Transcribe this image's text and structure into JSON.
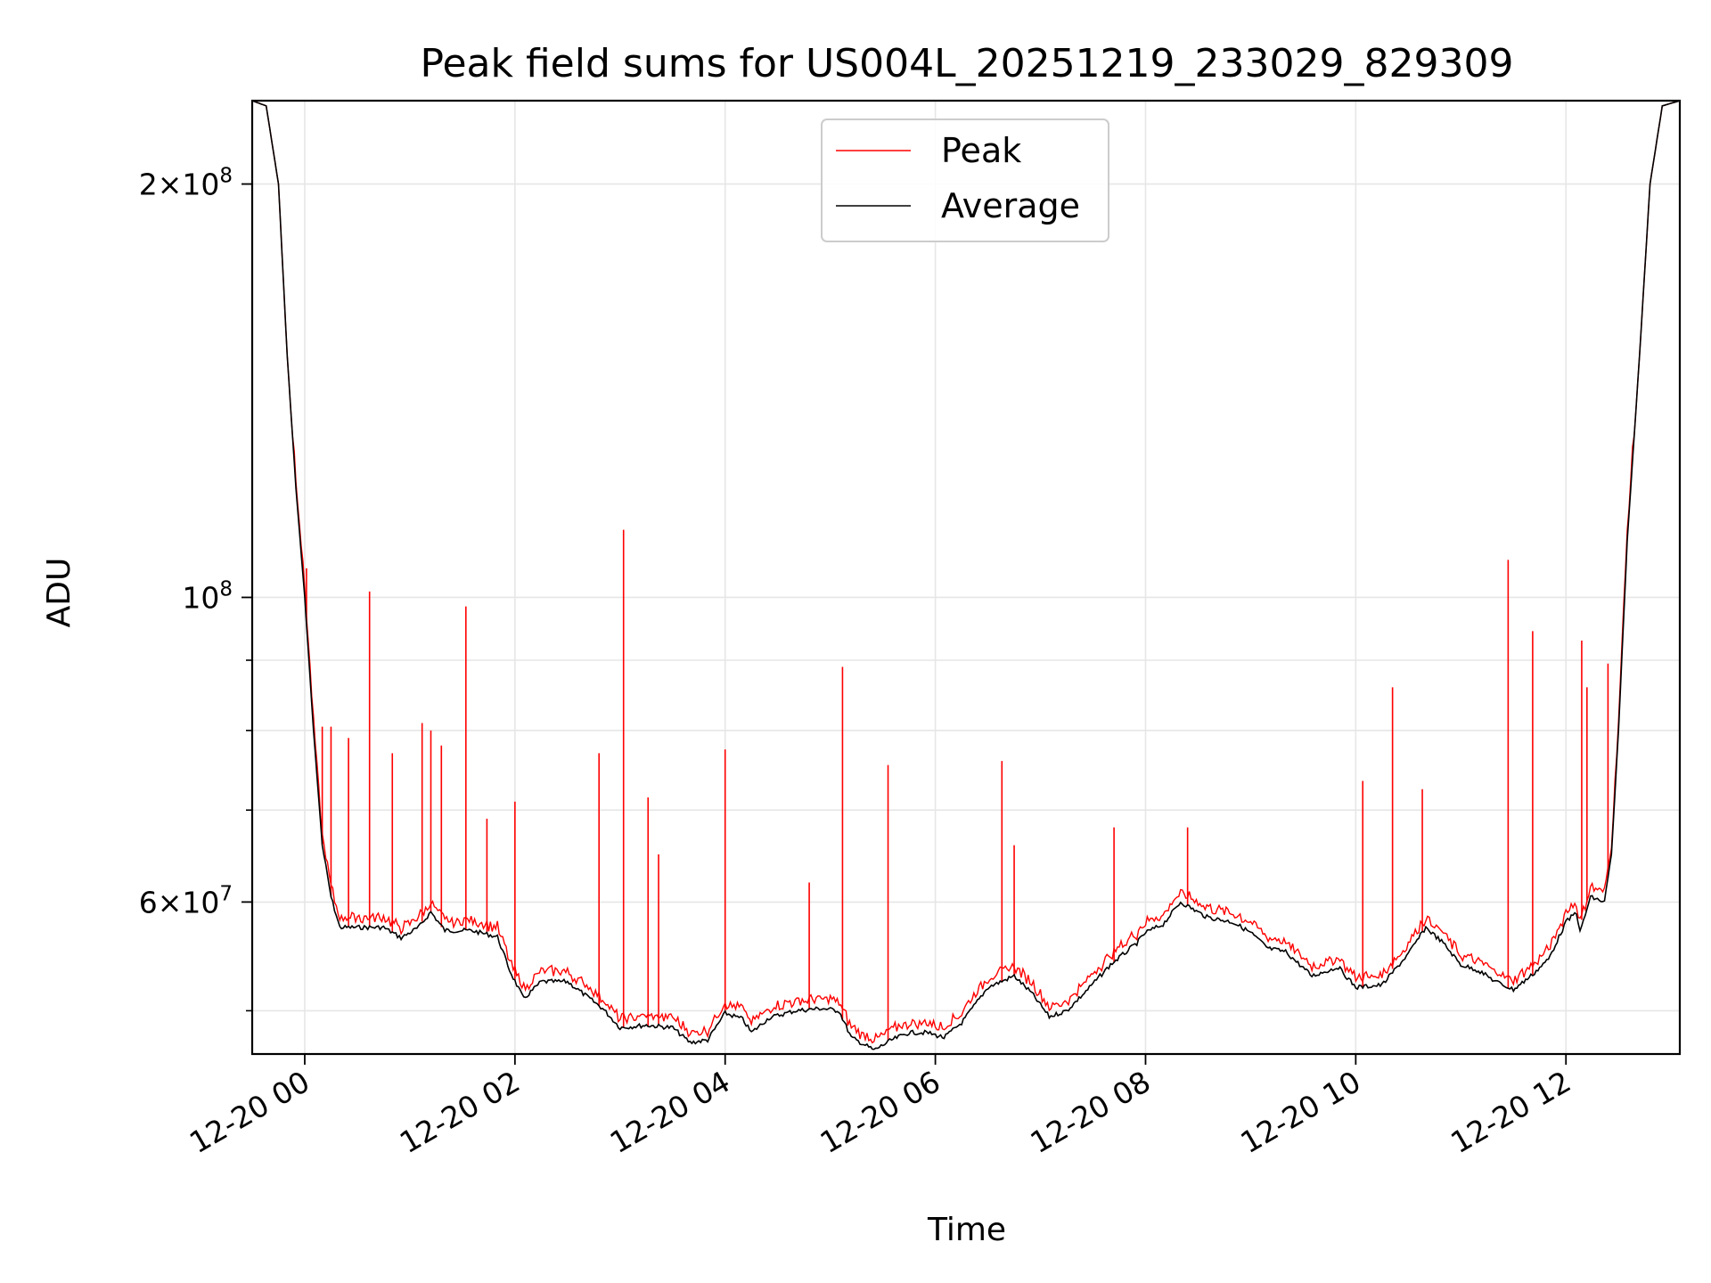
{
  "chart_data": {
    "type": "line",
    "title": "Peak field sums for US004L_20251219_233029_829309",
    "xlabel": "Time",
    "ylabel": "ADU",
    "yscale": "log",
    "xlim": [
      "2025-12-19 23:30",
      "2025-12-20 13:05"
    ],
    "ylim": [
      46500000,
      230000000
    ],
    "grid": true,
    "legend_position": "upper center",
    "x_ticks": [
      "12-20 00",
      "12-20 02",
      "12-20 04",
      "12-20 06",
      "12-20 08",
      "12-20 10",
      "12-20 12"
    ],
    "y_ticks": [
      {
        "value": 200000000,
        "mantissa": "2",
        "exponent": "8"
      },
      {
        "value": 100000000,
        "mantissa": "",
        "exponent": "8"
      },
      {
        "value": 60000000,
        "mantissa": "6",
        "exponent": "7"
      }
    ],
    "colors": {
      "peak": "#ff0000",
      "average": "#000000"
    },
    "series": [
      {
        "name": "Average",
        "color": "#000000",
        "points": [
          [
            "2025-12-19 23:30",
            230000000
          ],
          [
            "2025-12-19 23:38",
            228000000
          ],
          [
            "2025-12-19 23:45",
            200000000
          ],
          [
            "2025-12-19 23:50",
            150000000
          ],
          [
            "2025-12-19 23:55",
            120000000
          ],
          [
            "2025-12-20 00:00",
            100000000
          ],
          [
            "2025-12-20 00:05",
            80000000
          ],
          [
            "2025-12-20 00:10",
            66000000
          ],
          [
            "2025-12-20 00:15",
            60500000
          ],
          [
            "2025-12-20 00:20",
            57500000
          ],
          [
            "2025-12-20 00:30",
            57500000
          ],
          [
            "2025-12-20 00:45",
            57500000
          ],
          [
            "2025-12-20 00:55",
            56500000
          ],
          [
            "2025-12-20 01:05",
            57500000
          ],
          [
            "2025-12-20 01:12",
            59000000
          ],
          [
            "2025-12-20 01:20",
            57200000
          ],
          [
            "2025-12-20 01:35",
            57200000
          ],
          [
            "2025-12-20 01:50",
            56600000
          ],
          [
            "2025-12-20 01:57",
            53500000
          ],
          [
            "2025-12-20 02:05",
            51000000
          ],
          [
            "2025-12-20 02:15",
            52500000
          ],
          [
            "2025-12-20 02:30",
            52500000
          ],
          [
            "2025-12-20 02:50",
            50200000
          ],
          [
            "2025-12-20 03:00",
            48600000
          ],
          [
            "2025-12-20 03:15",
            48800000
          ],
          [
            "2025-12-20 03:30",
            48600000
          ],
          [
            "2025-12-20 03:40",
            47400000
          ],
          [
            "2025-12-20 03:50",
            47600000
          ],
          [
            "2025-12-20 04:00",
            49800000
          ],
          [
            "2025-12-20 04:10",
            49300000
          ],
          [
            "2025-12-20 04:15",
            48200000
          ],
          [
            "2025-12-20 04:25",
            49400000
          ],
          [
            "2025-12-20 04:40",
            50000000
          ],
          [
            "2025-12-20 04:55",
            50200000
          ],
          [
            "2025-12-20 05:05",
            50000000
          ],
          [
            "2025-12-20 05:12",
            47800000
          ],
          [
            "2025-12-20 05:20",
            47200000
          ],
          [
            "2025-12-20 05:25",
            46800000
          ],
          [
            "2025-12-20 05:35",
            47600000
          ],
          [
            "2025-12-20 05:45",
            48200000
          ],
          [
            "2025-12-20 05:55",
            48200000
          ],
          [
            "2025-12-20 06:05",
            47800000
          ],
          [
            "2025-12-20 06:15",
            49000000
          ],
          [
            "2025-12-20 06:30",
            52000000
          ],
          [
            "2025-12-20 06:45",
            53000000
          ],
          [
            "2025-12-20 06:55",
            51500000
          ],
          [
            "2025-12-20 07:05",
            49500000
          ],
          [
            "2025-12-20 07:15",
            50000000
          ],
          [
            "2025-12-20 07:25",
            51500000
          ],
          [
            "2025-12-20 07:40",
            54000000
          ],
          [
            "2025-12-20 07:55",
            56000000
          ],
          [
            "2025-12-20 08:00",
            57000000
          ],
          [
            "2025-12-20 08:10",
            57800000
          ],
          [
            "2025-12-20 08:20",
            60000000
          ],
          [
            "2025-12-20 08:35",
            58500000
          ],
          [
            "2025-12-20 08:50",
            58000000
          ],
          [
            "2025-12-20 09:00",
            57000000
          ],
          [
            "2025-12-20 09:10",
            55500000
          ],
          [
            "2025-12-20 09:20",
            55200000
          ],
          [
            "2025-12-20 09:35",
            53000000
          ],
          [
            "2025-12-20 09:50",
            53800000
          ],
          [
            "2025-12-20 10:00",
            52000000
          ],
          [
            "2025-12-20 10:15",
            52200000
          ],
          [
            "2025-12-20 10:30",
            55000000
          ],
          [
            "2025-12-20 10:40",
            57500000
          ],
          [
            "2025-12-20 10:50",
            56000000
          ],
          [
            "2025-12-20 11:00",
            54000000
          ],
          [
            "2025-12-20 11:10",
            53500000
          ],
          [
            "2025-12-20 11:20",
            52500000
          ],
          [
            "2025-12-20 11:30",
            51800000
          ],
          [
            "2025-12-20 11:40",
            53000000
          ],
          [
            "2025-12-20 11:50",
            54500000
          ],
          [
            "2025-12-20 12:00",
            58000000
          ],
          [
            "2025-12-20 12:06",
            59000000
          ],
          [
            "2025-12-20 12:08",
            57000000
          ],
          [
            "2025-12-20 12:14",
            60500000
          ],
          [
            "2025-12-20 12:22",
            60000000
          ],
          [
            "2025-12-20 12:26",
            65000000
          ],
          [
            "2025-12-20 12:30",
            80000000
          ],
          [
            "2025-12-20 12:35",
            110000000
          ],
          [
            "2025-12-20 12:42",
            150000000
          ],
          [
            "2025-12-20 12:48",
            200000000
          ],
          [
            "2025-12-20 12:55",
            228000000
          ],
          [
            "2025-12-20 13:05",
            230000000
          ]
        ]
      },
      {
        "name": "Peak",
        "color": "#ff0000",
        "spikes": [
          [
            "2025-12-20 00:01",
            105000000
          ],
          [
            "2025-12-20 00:10",
            80500000
          ],
          [
            "2025-12-20 00:15",
            80500000
          ],
          [
            "2025-12-20 00:25",
            79000000
          ],
          [
            "2025-12-20 00:37",
            101000000
          ],
          [
            "2025-12-20 00:50",
            77000000
          ],
          [
            "2025-12-20 01:07",
            81000000
          ],
          [
            "2025-12-20 01:12",
            80000000
          ],
          [
            "2025-12-20 01:18",
            78000000
          ],
          [
            "2025-12-20 01:32",
            98500000
          ],
          [
            "2025-12-20 01:44",
            69000000
          ],
          [
            "2025-12-20 02:00",
            71000000
          ],
          [
            "2025-12-20 02:48",
            77000000
          ],
          [
            "2025-12-20 03:02",
            112000000
          ],
          [
            "2025-12-20 03:16",
            71500000
          ],
          [
            "2025-12-20 03:22",
            65000000
          ],
          [
            "2025-12-20 04:00",
            77500000
          ],
          [
            "2025-12-20 04:48",
            62000000
          ],
          [
            "2025-12-20 05:07",
            89000000
          ],
          [
            "2025-12-20 05:33",
            75500000
          ],
          [
            "2025-12-20 06:38",
            76000000
          ],
          [
            "2025-12-20 06:45",
            66000000
          ],
          [
            "2025-12-20 07:42",
            68000000
          ],
          [
            "2025-12-20 08:24",
            68000000
          ],
          [
            "2025-12-20 10:04",
            73500000
          ],
          [
            "2025-12-20 10:21",
            86000000
          ],
          [
            "2025-12-20 10:38",
            72500000
          ],
          [
            "2025-12-20 11:27",
            106500000
          ],
          [
            "2025-12-20 11:41",
            94500000
          ],
          [
            "2025-12-20 12:09",
            93000000
          ],
          [
            "2025-12-20 12:12",
            86000000
          ],
          [
            "2025-12-20 12:24",
            89500000
          ]
        ]
      }
    ]
  }
}
